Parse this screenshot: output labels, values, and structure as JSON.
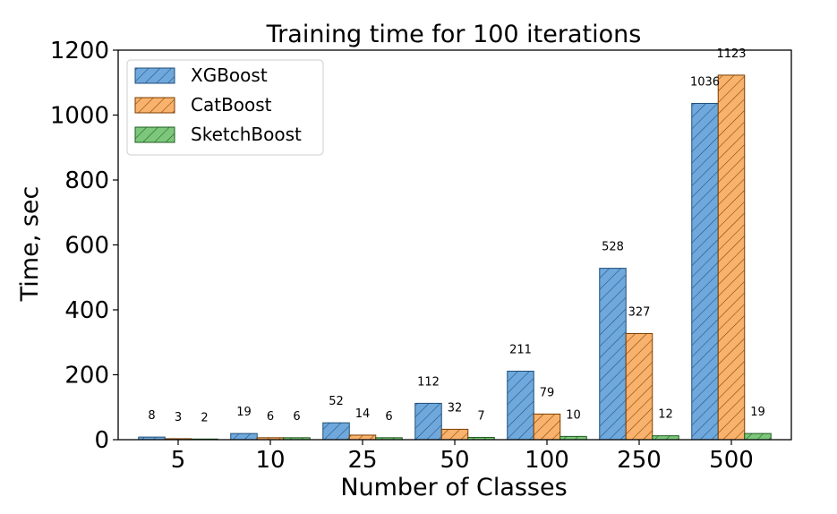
{
  "chart_data": {
    "type": "bar",
    "title": "Training time for 100 iterations",
    "xlabel": "Number of Classes",
    "ylabel": "Time, sec",
    "categories": [
      "5",
      "10",
      "25",
      "50",
      "100",
      "250",
      "500"
    ],
    "series": [
      {
        "name": "XGBoost",
        "values": [
          8,
          19,
          52,
          112,
          211,
          528,
          1036
        ],
        "labels": [
          "8",
          "19",
          "52",
          "112",
          "211",
          "528",
          "1036"
        ],
        "color": "#6fa8dc",
        "edge": "#1f4e79"
      },
      {
        "name": "CatBoost",
        "values": [
          3,
          6,
          14,
          32,
          79,
          327,
          1123
        ],
        "labels": [
          "3",
          "6",
          "14",
          "32",
          "79",
          "327",
          "1123"
        ],
        "color": "#f9b26c",
        "edge": "#7a3e00"
      },
      {
        "name": "SketchBoost",
        "values": [
          2,
          6,
          6,
          7,
          10,
          12,
          19
        ],
        "labels": [
          "2",
          "6",
          "6",
          "7",
          "10",
          "12",
          "19"
        ],
        "color": "#7cc77c",
        "edge": "#1e5c1e"
      }
    ],
    "ylim": [
      0,
      1200
    ],
    "yticks": [
      0,
      200,
      400,
      600,
      800,
      1000,
      1200
    ],
    "ytick_labels": [
      "0",
      "200",
      "400",
      "600",
      "800",
      "1000",
      "1200"
    ],
    "legend_position": "top-left",
    "grid": false
  }
}
